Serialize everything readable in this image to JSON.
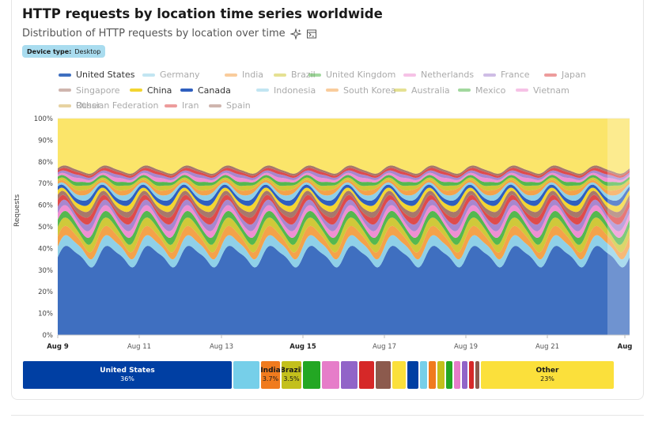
{
  "header": {
    "title": "HTTP requests by location time series worldwide",
    "subtitle": "Distribution of HTTP requests by location over time",
    "icons": [
      "sparkle-icon",
      "share-embed-icon"
    ]
  },
  "filter": {
    "key": "Device type:",
    "value": "Desktop"
  },
  "chart_data": {
    "type": "area",
    "stacked": true,
    "normalized": true,
    "title": "HTTP requests by location time series worldwide",
    "ylabel": "Requests",
    "ylim": [
      0,
      100
    ],
    "y_ticks": [
      "0%",
      "10%",
      "20%",
      "30%",
      "40%",
      "50%",
      "60%",
      "70%",
      "80%",
      "90%",
      "100%"
    ],
    "x_ticks": [
      "Aug 9",
      "Aug 11",
      "Aug 13",
      "Aug 15",
      "Aug 17",
      "Aug 19",
      "Aug 21",
      "Aug"
    ],
    "x_bold_ticks": [
      "Aug 9",
      "Aug 15",
      "Aug"
    ],
    "legend_position": "top",
    "series": [
      {
        "name": "United States",
        "color": "#3f6fc0",
        "base": 36,
        "amp": 7,
        "active": true
      },
      {
        "name": "Germany",
        "color": "#8fd0e8",
        "base": 4.3,
        "amp": 1.0,
        "active": false
      },
      {
        "name": "India",
        "color": "#f4a24a",
        "base": 3.7,
        "amp": 1.2,
        "active": false
      },
      {
        "name": "Brazil",
        "color": "#cfc93a",
        "base": 3.5,
        "amp": 1.0,
        "active": false
      },
      {
        "name": "United Kingdom",
        "color": "#55b84f",
        "base": 2.9,
        "amp": 0.6,
        "active": false
      },
      {
        "name": "Netherlands",
        "color": "#ef8fd2",
        "base": 2.6,
        "amp": 0.5,
        "active": false
      },
      {
        "name": "France",
        "color": "#a787cf",
        "base": 2.5,
        "amp": 0.6,
        "active": false
      },
      {
        "name": "Japan",
        "color": "#df4b4b",
        "base": 2.4,
        "amp": 0.9,
        "active": false
      },
      {
        "name": "Singapore",
        "color": "#a7786c",
        "base": 2.2,
        "amp": 0.4,
        "active": false
      },
      {
        "name": "China",
        "color": "#f3d531",
        "base": 2.1,
        "amp": 0.7,
        "active": true
      },
      {
        "name": "Canada",
        "color": "#2f5fbf",
        "base": 1.9,
        "amp": 0.4,
        "active": true
      },
      {
        "name": "Indonesia",
        "color": "#8fd0e8",
        "base": 1.7,
        "amp": 0.6,
        "active": false
      },
      {
        "name": "South Korea",
        "color": "#f4a24a",
        "base": 1.6,
        "amp": 0.5,
        "active": false
      },
      {
        "name": "Australia",
        "color": "#cfc93a",
        "base": 1.5,
        "amp": 0.5,
        "active": false
      },
      {
        "name": "Mexico",
        "color": "#55b84f",
        "base": 1.4,
        "amp": 0.3,
        "active": false
      },
      {
        "name": "Vietnam",
        "color": "#ef8fd2",
        "base": 1.3,
        "amp": 0.5,
        "active": false
      },
      {
        "name": "Russian Federation",
        "color": "#a787cf",
        "base": 1.2,
        "amp": 0.3,
        "active": false
      },
      {
        "name": "Iran",
        "color": "#df4b4b",
        "base": 1.1,
        "amp": 0.3,
        "active": false
      },
      {
        "name": "Spain",
        "color": "#a7786c",
        "base": 1.0,
        "amp": 0.2,
        "active": false
      },
      {
        "name": "Other",
        "color": "#fbe56a",
        "base": 23,
        "amp": 0,
        "active": false
      }
    ],
    "treemap": [
      {
        "name": "United States",
        "value": "36%",
        "color": "#003fa3",
        "text": "#ffffff",
        "labelled": true
      },
      {
        "name": "Germany",
        "value": "",
        "color": "#76cfe9",
        "text": "#ffffff",
        "labelled": false
      },
      {
        "name": "India",
        "value": "3.7%",
        "color": "#f07b1e",
        "text": "#1a1a1a",
        "labelled": true
      },
      {
        "name": "Brazil",
        "value": "3.5%",
        "color": "#c3c01c",
        "text": "#1a1a1a",
        "labelled": true
      },
      {
        "name": "United Kingdom",
        "value": "",
        "color": "#23a723",
        "text": "#ffffff",
        "labelled": false
      },
      {
        "name": "Netherlands",
        "value": "",
        "color": "#e67dc9",
        "text": "#ffffff",
        "labelled": false
      },
      {
        "name": "France",
        "value": "",
        "color": "#9164c8",
        "text": "#ffffff",
        "labelled": false
      },
      {
        "name": "Japan",
        "value": "",
        "color": "#d62828",
        "text": "#ffffff",
        "labelled": false
      },
      {
        "name": "Singapore",
        "value": "",
        "color": "#8c5a4d",
        "text": "#ffffff",
        "labelled": false
      },
      {
        "name": "China",
        "value": "",
        "color": "#fbe03b",
        "text": "#ffffff",
        "labelled": false
      },
      {
        "name": "Canada",
        "value": "",
        "color": "#003fa3",
        "text": "#ffffff",
        "labelled": false
      },
      {
        "name": "Indonesia",
        "value": "",
        "color": "#76cfe9",
        "text": "#ffffff",
        "labelled": false
      },
      {
        "name": "South Korea",
        "value": "",
        "color": "#f07b1e",
        "text": "#ffffff",
        "labelled": false
      },
      {
        "name": "Australia",
        "value": "",
        "color": "#c3c01c",
        "text": "#ffffff",
        "labelled": false
      },
      {
        "name": "Mexico",
        "value": "",
        "color": "#23a723",
        "text": "#ffffff",
        "labelled": false
      },
      {
        "name": "Vietnam",
        "value": "",
        "color": "#e67dc9",
        "text": "#ffffff",
        "labelled": false
      },
      {
        "name": "Russian Federation",
        "value": "",
        "color": "#9164c8",
        "text": "#ffffff",
        "labelled": false
      },
      {
        "name": "Iran",
        "value": "",
        "color": "#d62828",
        "text": "#ffffff",
        "labelled": false
      },
      {
        "name": "Spain",
        "value": "",
        "color": "#8c5a4d",
        "text": "#ffffff",
        "labelled": false
      },
      {
        "name": "Other",
        "value": "23%",
        "color": "#fbe03b",
        "text": "#1a1a1a",
        "labelled": true
      }
    ]
  }
}
